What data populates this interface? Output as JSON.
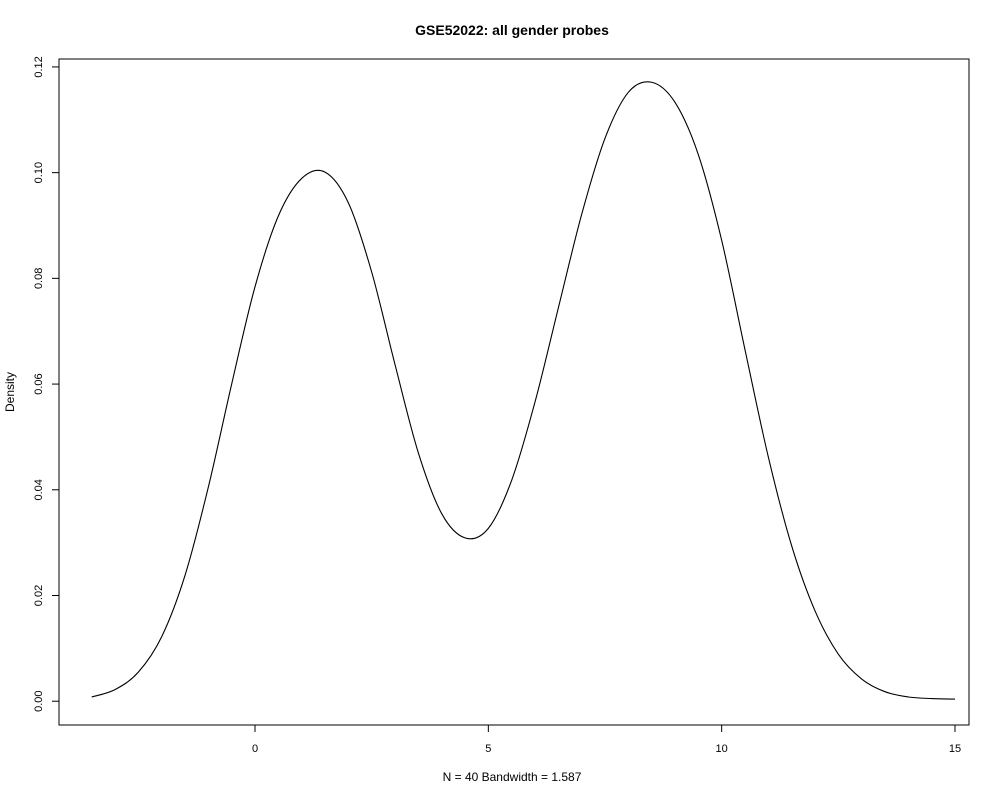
{
  "chart_data": {
    "type": "line",
    "title": "GSE52022: all gender probes",
    "xlabel": "N = 40   Bandwidth = 1.587",
    "ylabel": "Density",
    "xlim": [
      -4.2,
      15.3
    ],
    "ylim": [
      -0.0045,
      0.1215
    ],
    "x_ticks": [
      0,
      5,
      10,
      15
    ],
    "x_tick_labels": [
      "0",
      "5",
      "10",
      "15"
    ],
    "y_ticks": [
      0.0,
      0.02,
      0.04,
      0.06,
      0.08,
      0.1,
      0.12
    ],
    "y_tick_labels": [
      "0.00",
      "0.02",
      "0.04",
      "0.06",
      "0.08",
      "0.10",
      "0.12"
    ],
    "grid": false,
    "legend": "none",
    "series": [
      {
        "x": [
          -3.5,
          -3,
          -2.5,
          -2,
          -1.5,
          -1,
          -0.5,
          0,
          0.5,
          1,
          1.5,
          2,
          2.5,
          3,
          3.5,
          4,
          4.5,
          5,
          5.5,
          6,
          6.5,
          7,
          7.5,
          8,
          8.5,
          9,
          9.5,
          10,
          10.5,
          11,
          11.5,
          12,
          12.5,
          13,
          13.5,
          14,
          14.5,
          15
        ],
        "y": [
          0.0008,
          0.0022,
          0.0055,
          0.0122,
          0.0238,
          0.0405,
          0.06,
          0.0784,
          0.0918,
          0.0989,
          0.1001,
          0.0943,
          0.0812,
          0.0637,
          0.047,
          0.0355,
          0.0309,
          0.0327,
          0.0418,
          0.0566,
          0.0744,
          0.0921,
          0.1065,
          0.1152,
          0.1171,
          0.1133,
          0.1034,
          0.0872,
          0.0665,
          0.0462,
          0.0294,
          0.0171,
          0.0089,
          0.0042,
          0.0018,
          0.0008,
          0.0005,
          0.0004
        ]
      }
    ]
  }
}
